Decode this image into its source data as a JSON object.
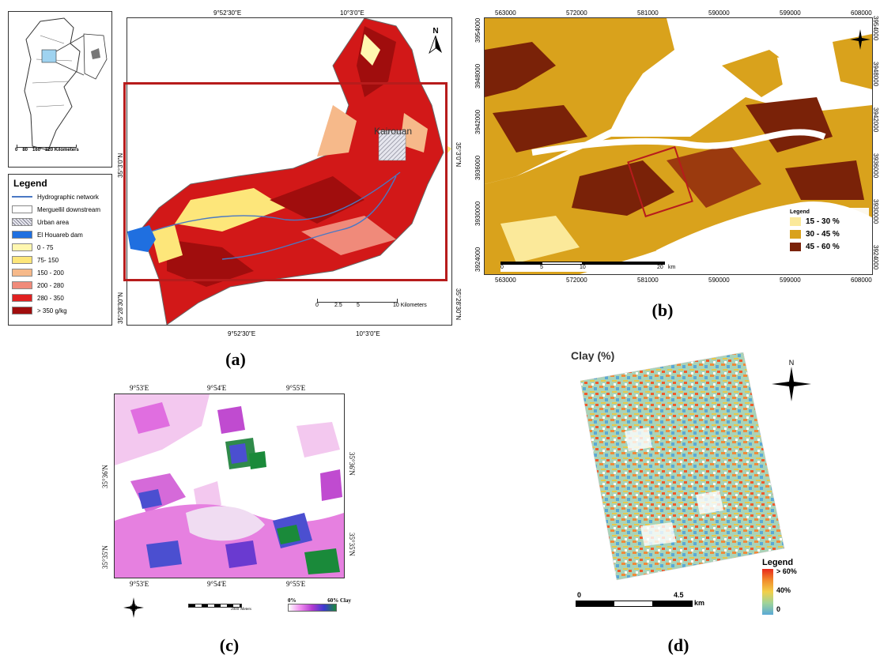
{
  "panels": {
    "a": {
      "label": "(a)",
      "top_coords": [
        "9°52'30\"E",
        "10°3'0\"E"
      ],
      "bottom_coords": [
        "9°52'30\"E",
        "10°3'0\"E"
      ],
      "left_coords": [
        "35°3'0\"N",
        "35°28'30\"N"
      ],
      "right_coords": [
        "35°3'0\"N",
        "35°28'30\"N"
      ],
      "city": "Kairouan",
      "north": "N",
      "inset_scale": {
        "ticks": [
          "0",
          "80",
          "160",
          "320 Kilometers"
        ]
      },
      "scale": {
        "ticks": [
          "0",
          "2.5",
          "5",
          "10 Kilometers"
        ]
      },
      "legend": {
        "title": "Legend",
        "items": [
          {
            "label": "Hydrographic network",
            "color": "#4a78c4",
            "kind": "line"
          },
          {
            "label": "Merguellil downstream",
            "color": "#ffffff",
            "kind": "box"
          },
          {
            "label": "Urban area",
            "color": "#c9c9d8",
            "kind": "hatch"
          },
          {
            "label": "El Houareb dam",
            "color": "#1f6fe0",
            "kind": "fill"
          },
          {
            "label": "0 - 75",
            "color": "#fff7b0",
            "kind": "fill"
          },
          {
            "label": "75- 150",
            "color": "#fde67a",
            "kind": "fill"
          },
          {
            "label": "150 - 200",
            "color": "#f6b98a",
            "kind": "fill"
          },
          {
            "label": "200 - 280",
            "color": "#f08a7a",
            "kind": "fill"
          },
          {
            "label": "280 - 350",
            "color": "#e02020",
            "kind": "fill"
          },
          {
            "label": "> 350 g/kg",
            "color": "#a00d0d",
            "kind": "fill"
          }
        ]
      }
    },
    "b": {
      "label": "(b)",
      "top_coords": [
        "563000",
        "572000",
        "581000",
        "590000",
        "599000",
        "608000"
      ],
      "bottom_coords": [
        "563000",
        "572000",
        "581000",
        "590000",
        "599000",
        "608000"
      ],
      "left_coords": [
        "3954000",
        "3948000",
        "3942000",
        "3936000",
        "3930000",
        "3924000"
      ],
      "right_coords": [
        "3954000",
        "3948000",
        "3942000",
        "3936000",
        "3930000",
        "3924000"
      ],
      "scale": {
        "ticks": [
          "0",
          "5",
          "10",
          "20"
        ],
        "unit": "km"
      },
      "legend": {
        "title": "Legend",
        "items": [
          {
            "label": "15 - 30 %",
            "color": "#fbe99a"
          },
          {
            "label": "30 - 45 %",
            "color": "#d9a21c"
          },
          {
            "label": "45 - 60 %",
            "color": "#7a2208"
          }
        ]
      }
    },
    "c": {
      "label": "(c)",
      "top_coords": [
        "9°53'E",
        "9°54'E",
        "9°55'E"
      ],
      "bottom_coords": [
        "9°53'E",
        "9°54'E",
        "9°55'E"
      ],
      "left_coords": [
        "35°36'N",
        "35°35'N"
      ],
      "right_coords": [
        "35°36'N",
        "35°35'N"
      ],
      "legend": {
        "min": "0%",
        "max": "60% Clay"
      },
      "scale": {
        "max": "2000",
        "unit": "Meters"
      }
    },
    "d": {
      "label": "(d)",
      "title": "Clay (%)",
      "north": "N",
      "scale": {
        "ticks": [
          "0",
          "4.5"
        ],
        "unit": "km"
      },
      "legend": {
        "title": "Legend",
        "labels": [
          "> 60%",
          "40%",
          "0"
        ]
      }
    }
  }
}
